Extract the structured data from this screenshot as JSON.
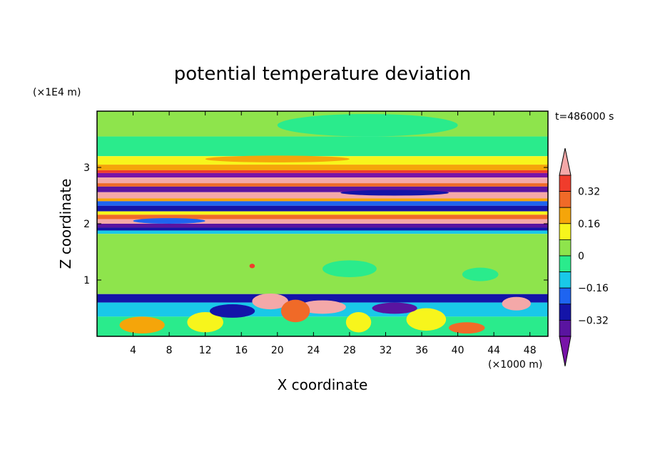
{
  "chart_data": {
    "type": "heatmap",
    "title": "potential temperature deviation",
    "time_label": "t=486000 s",
    "xlabel": "X coordinate",
    "ylabel": "Z coordinate",
    "x_unit": "(×1000 m)",
    "y_unit": "(×1E4 m)",
    "xlim": [
      0,
      50
    ],
    "ylim": [
      0,
      4
    ],
    "xticks": [
      4,
      8,
      12,
      16,
      20,
      24,
      28,
      32,
      36,
      40,
      44,
      48
    ],
    "yticks": [
      1,
      2,
      3
    ],
    "colorbar": {
      "tick_labels": [
        "0.32",
        "0.16",
        "0",
        "−0.16",
        "−0.32"
      ],
      "tick_values": [
        0.32,
        0.16,
        0,
        -0.16,
        -0.32
      ],
      "levels": [
        {
          "min": 0.4,
          "max": null,
          "color": "#f4a8a8"
        },
        {
          "min": 0.32,
          "max": 0.4,
          "color": "#f03c2c"
        },
        {
          "min": 0.24,
          "max": 0.32,
          "color": "#f06a28"
        },
        {
          "min": 0.16,
          "max": 0.24,
          "color": "#f5a50a"
        },
        {
          "min": 0.08,
          "max": 0.16,
          "color": "#f7f51c"
        },
        {
          "min": 0.0,
          "max": 0.08,
          "color": "#8ee44c"
        },
        {
          "min": -0.08,
          "max": 0.0,
          "color": "#2aeb8c"
        },
        {
          "min": -0.16,
          "max": -0.08,
          "color": "#19c8e8"
        },
        {
          "min": -0.24,
          "max": -0.16,
          "color": "#1e64f0"
        },
        {
          "min": -0.32,
          "max": -0.24,
          "color": "#1414a8"
        },
        {
          "min": -0.4,
          "max": -0.32,
          "color": "#5a14a0"
        },
        {
          "min": null,
          "max": -0.4,
          "color": "#7814a8"
        }
      ]
    },
    "bands": [
      {
        "z0": 3.55,
        "z1": 4.0,
        "color": "#8ee44c"
      },
      {
        "z0": 3.2,
        "z1": 3.55,
        "color": "#2aeb8c"
      },
      {
        "z0": 3.05,
        "z1": 3.2,
        "color": "#f7f51c"
      },
      {
        "z0": 2.95,
        "z1": 3.05,
        "color": "#f5a50a"
      },
      {
        "z0": 2.9,
        "z1": 2.95,
        "color": "#f03c2c"
      },
      {
        "z0": 2.82,
        "z1": 2.9,
        "color": "#7814a8"
      },
      {
        "z0": 2.72,
        "z1": 2.82,
        "color": "#f4a8a8"
      },
      {
        "z0": 2.66,
        "z1": 2.72,
        "color": "#f06a28"
      },
      {
        "z0": 2.56,
        "z1": 2.66,
        "color": "#5a14a0"
      },
      {
        "z0": 2.45,
        "z1": 2.56,
        "color": "#f4a8a8"
      },
      {
        "z0": 2.4,
        "z1": 2.45,
        "color": "#f5a50a"
      },
      {
        "z0": 2.32,
        "z1": 2.4,
        "color": "#1e64f0"
      },
      {
        "z0": 2.22,
        "z1": 2.32,
        "color": "#1414a8"
      },
      {
        "z0": 2.16,
        "z1": 2.22,
        "color": "#f7f51c"
      },
      {
        "z0": 2.08,
        "z1": 2.16,
        "color": "#f06a28"
      },
      {
        "z0": 2.0,
        "z1": 2.08,
        "color": "#f4a8a8"
      },
      {
        "z0": 1.93,
        "z1": 2.0,
        "color": "#5a14a0"
      },
      {
        "z0": 1.88,
        "z1": 1.93,
        "color": "#1414a8"
      },
      {
        "z0": 1.82,
        "z1": 1.88,
        "color": "#19c8e8"
      },
      {
        "z0": 0.75,
        "z1": 1.82,
        "color": "#8ee44c"
      },
      {
        "z0": 0.6,
        "z1": 0.75,
        "color": "#1414a8"
      },
      {
        "z0": 0.35,
        "z1": 0.6,
        "color": "#19c8e8"
      },
      {
        "z0": 0.0,
        "z1": 0.35,
        "color": "#2aeb8c"
      }
    ],
    "blobs": [
      {
        "x": 19.2,
        "z": 0.62,
        "rx": 2.0,
        "rz": 0.14,
        "color": "#f4a8a8"
      },
      {
        "x": 25.0,
        "z": 0.52,
        "rx": 2.6,
        "rz": 0.12,
        "color": "#f4a8a8"
      },
      {
        "x": 46.5,
        "z": 0.58,
        "rx": 1.6,
        "rz": 0.12,
        "color": "#f4a8a8"
      },
      {
        "x": 22.0,
        "z": 0.45,
        "rx": 1.6,
        "rz": 0.2,
        "color": "#f06a28"
      },
      {
        "x": 29.0,
        "z": 0.25,
        "rx": 1.4,
        "rz": 0.18,
        "color": "#f7f51c"
      },
      {
        "x": 5.0,
        "z": 0.2,
        "rx": 2.5,
        "rz": 0.15,
        "color": "#f5a50a"
      },
      {
        "x": 12.0,
        "z": 0.25,
        "rx": 2.0,
        "rz": 0.18,
        "color": "#f7f51c"
      },
      {
        "x": 36.5,
        "z": 0.3,
        "rx": 2.2,
        "rz": 0.2,
        "color": "#f7f51c"
      },
      {
        "x": 41.0,
        "z": 0.15,
        "rx": 2.0,
        "rz": 0.1,
        "color": "#f06a28"
      },
      {
        "x": 15.0,
        "z": 0.45,
        "rx": 2.5,
        "rz": 0.12,
        "color": "#1414a8"
      },
      {
        "x": 33.0,
        "z": 0.5,
        "rx": 2.5,
        "rz": 0.1,
        "color": "#5a14a0"
      },
      {
        "x": 42.5,
        "z": 1.1,
        "rx": 2.0,
        "rz": 0.12,
        "color": "#2aeb8c"
      },
      {
        "x": 28.0,
        "z": 1.2,
        "rx": 3.0,
        "rz": 0.15,
        "color": "#2aeb8c"
      },
      {
        "x": 17.2,
        "z": 1.25,
        "rx": 0.3,
        "rz": 0.04,
        "color": "#f03c2c"
      },
      {
        "x": 30.0,
        "z": 3.75,
        "rx": 10.0,
        "rz": 0.2,
        "color": "#2aeb8c"
      },
      {
        "x": 20.0,
        "z": 3.15,
        "rx": 8.0,
        "rz": 0.06,
        "color": "#f5a50a"
      },
      {
        "x": 33.0,
        "z": 2.55,
        "rx": 6.0,
        "rz": 0.05,
        "color": "#1414a8"
      },
      {
        "x": 8.0,
        "z": 2.05,
        "rx": 4.0,
        "rz": 0.05,
        "color": "#1e64f0"
      }
    ]
  }
}
